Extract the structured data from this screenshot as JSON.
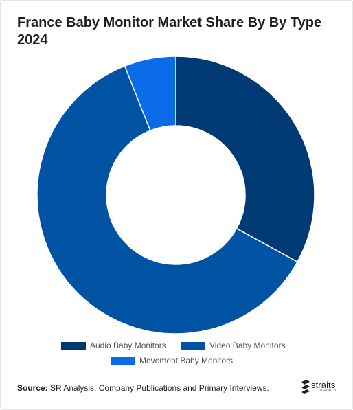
{
  "title": "France Baby Monitor Market Share By By Type 2024",
  "source": {
    "label": "Source:",
    "text": "SR Analysis, Company Publications and Primary Interviews."
  },
  "logo": {
    "word": "straits",
    "sub": "research"
  },
  "chart_data": {
    "type": "pie",
    "donut": true,
    "categories": [
      "Audio Baby Monitors",
      "Video Baby Monitors",
      "Movement Baby Monitors"
    ],
    "values": [
      33,
      61,
      6
    ],
    "colors": [
      "#003a74",
      "#0052a3",
      "#0a6ce8"
    ],
    "legend_position": "bottom"
  }
}
